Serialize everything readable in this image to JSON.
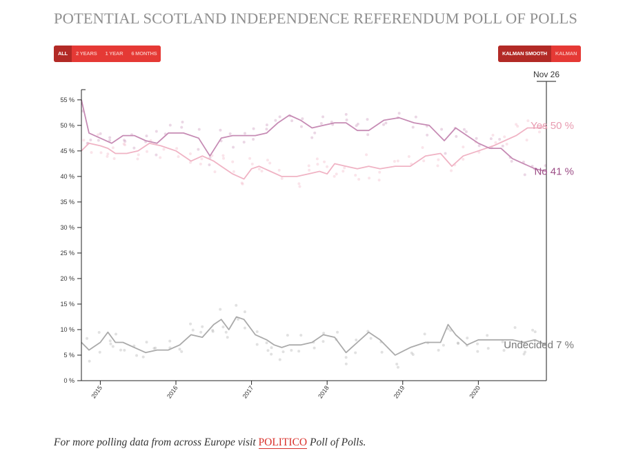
{
  "page": {
    "title": "POTENTIAL SCOTLAND INDEPENDENCE REFERENDUM POLL OF POLLS",
    "range_buttons": [
      "ALL",
      "2 YEARS",
      "1 YEAR",
      "6 MONTHS"
    ],
    "range_selected": "ALL",
    "model_buttons": [
      "KALMAN SMOOTH",
      "KALMAN"
    ],
    "model_selected": "KALMAN SMOOTH",
    "footer": {
      "prefix": "For more polling data from across Europe visit ",
      "link": "POLITICO",
      "suffix": " Poll of Polls",
      "end": "."
    }
  },
  "chart_data": {
    "type": "line",
    "title": "POTENTIAL SCOTLAND INDEPENDENCE REFERENDUM POLL OF POLLS",
    "xlabel": "",
    "ylabel": "",
    "ylim": [
      0,
      57
    ],
    "yticks": [
      0,
      5,
      10,
      15,
      20,
      25,
      30,
      35,
      40,
      45,
      50,
      55
    ],
    "ytick_labels": [
      "0 %",
      "5 %",
      "10 %",
      "15 %",
      "20 %",
      "25 %",
      "30 %",
      "35 %",
      "40 %",
      "45 %",
      "50 %",
      "55 %"
    ],
    "xlim": [
      2014.75,
      2020.9
    ],
    "xticks": [
      2015,
      2016,
      2017,
      2018,
      2019,
      2020
    ],
    "xtick_labels": [
      "2015",
      "2016",
      "2017",
      "2018",
      "2019",
      "2020"
    ],
    "cursor_label": "Nov 26",
    "series": [
      {
        "name": "Yes",
        "end_label": "Yes  50 %",
        "color": "#f0b3c4",
        "x": [
          2014.75,
          2014.85,
          2015.0,
          2015.1,
          2015.2,
          2015.35,
          2015.5,
          2015.65,
          2015.8,
          2016.0,
          2016.2,
          2016.35,
          2016.5,
          2016.6,
          2016.75,
          2016.9,
          2017.0,
          2017.1,
          2017.25,
          2017.4,
          2017.6,
          2017.75,
          2017.9,
          2018.0,
          2018.1,
          2018.25,
          2018.4,
          2018.55,
          2018.7,
          2018.9,
          2019.1,
          2019.3,
          2019.5,
          2019.65,
          2019.8,
          2020.0,
          2020.2,
          2020.35,
          2020.5,
          2020.65,
          2020.8,
          2020.9
        ],
        "values": [
          45,
          46.5,
          46,
          45.5,
          44.5,
          44.5,
          45,
          46.5,
          46,
          45,
          43,
          44,
          43,
          42,
          40.5,
          39.5,
          41.5,
          42,
          41,
          40,
          40,
          40.5,
          41,
          40.5,
          42.5,
          42,
          41.5,
          42,
          41.5,
          42,
          42,
          44,
          44.5,
          42,
          44,
          45,
          46,
          47,
          48,
          49.5,
          49.5,
          50
        ]
      },
      {
        "name": "No",
        "end_label": "No  41 %",
        "color": "#c68bb4",
        "x": [
          2014.75,
          2014.85,
          2015.0,
          2015.15,
          2015.3,
          2015.45,
          2015.6,
          2015.75,
          2015.9,
          2016.1,
          2016.3,
          2016.45,
          2016.6,
          2016.75,
          2016.9,
          2017.05,
          2017.2,
          2017.35,
          2017.5,
          2017.65,
          2017.8,
          2017.95,
          2018.1,
          2018.25,
          2018.4,
          2018.55,
          2018.75,
          2018.95,
          2019.15,
          2019.35,
          2019.55,
          2019.7,
          2019.85,
          2020.0,
          2020.15,
          2020.3,
          2020.45,
          2020.6,
          2020.75,
          2020.9
        ],
        "values": [
          55,
          48.5,
          47.5,
          46.5,
          48,
          48,
          47,
          46.5,
          48.5,
          48.5,
          47.5,
          44,
          47.5,
          48,
          48,
          48,
          48.5,
          50.5,
          52,
          51,
          49.5,
          50,
          50.5,
          50.5,
          49,
          49,
          51,
          51.5,
          50.5,
          50,
          47,
          49.5,
          48,
          46.5,
          45.5,
          45.5,
          43.5,
          42.5,
          41.5,
          41
        ]
      },
      {
        "name": "Undecided",
        "end_label": "Undecided  7 %",
        "color": "#aaaaaa",
        "x": [
          2014.75,
          2014.85,
          2015.0,
          2015.1,
          2015.2,
          2015.3,
          2015.45,
          2015.6,
          2015.75,
          2015.9,
          2016.05,
          2016.2,
          2016.35,
          2016.5,
          2016.6,
          2016.7,
          2016.8,
          2016.9,
          2017.05,
          2017.2,
          2017.3,
          2017.4,
          2017.5,
          2017.65,
          2017.8,
          2017.95,
          2018.1,
          2018.25,
          2018.4,
          2018.55,
          2018.7,
          2018.9,
          2019.1,
          2019.3,
          2019.5,
          2019.6,
          2019.7,
          2019.85,
          2020.0,
          2020.15,
          2020.3,
          2020.45,
          2020.6,
          2020.75,
          2020.9
        ],
        "values": [
          7.5,
          6,
          7.5,
          9.5,
          7.5,
          7.5,
          6.5,
          5.5,
          6,
          6,
          7,
          9,
          8.5,
          11,
          12,
          10,
          12.5,
          12,
          9,
          8,
          7,
          6.5,
          7,
          7,
          7.5,
          9,
          8.5,
          5.5,
          7.5,
          9.5,
          8,
          5,
          6.5,
          7.5,
          7.5,
          11,
          9,
          7,
          8,
          8,
          8,
          8,
          7.5,
          8,
          7
        ]
      }
    ]
  }
}
